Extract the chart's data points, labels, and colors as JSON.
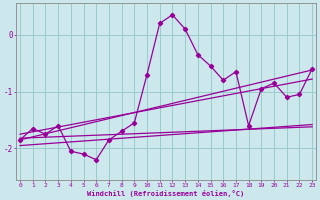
{
  "xlabel": "Windchill (Refroidissement éolien,°C)",
  "bg_color": "#cce8ec",
  "line_color": "#990099",
  "grid_color": "#99cccc",
  "x_data": [
    0,
    1,
    2,
    3,
    4,
    5,
    6,
    7,
    8,
    9,
    10,
    11,
    12,
    13,
    14,
    15,
    16,
    17,
    18,
    19,
    20,
    21,
    22,
    23
  ],
  "y_main": [
    -1.85,
    -1.65,
    -1.75,
    -1.6,
    -2.05,
    -2.1,
    -2.2,
    -1.85,
    -1.7,
    -1.55,
    -0.7,
    0.2,
    0.35,
    0.1,
    -0.35,
    -0.55,
    -0.8,
    -0.65,
    -1.6,
    -0.95,
    -0.85,
    -1.1,
    -1.05,
    -0.6
  ],
  "trend_lines": [
    [
      -1.85,
      -0.62
    ],
    [
      -1.75,
      -0.78
    ],
    [
      -1.95,
      -1.58
    ],
    [
      -1.82,
      -1.62
    ]
  ],
  "xlim": [
    -0.3,
    23.3
  ],
  "ylim": [
    -2.55,
    0.55
  ],
  "yticks": [
    0,
    -1,
    -2
  ],
  "xticks": [
    0,
    1,
    2,
    3,
    4,
    5,
    6,
    7,
    8,
    9,
    10,
    11,
    12,
    13,
    14,
    15,
    16,
    17,
    18,
    19,
    20,
    21,
    22,
    23
  ],
  "figsize": [
    3.2,
    2.0
  ],
  "dpi": 100
}
